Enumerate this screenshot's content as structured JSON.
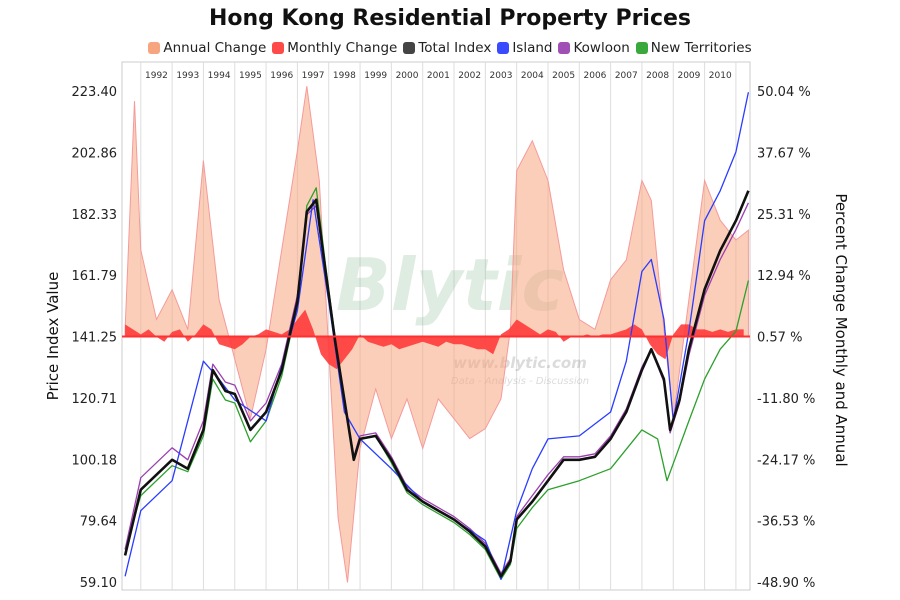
{
  "chart_data": {
    "type": "line",
    "title": "Hong Kong Residential Property Prices",
    "ylabel": "Price Index Value",
    "y2label": "Percent Change Monthly and Annual",
    "xlim": [
      1991.4,
      2011.45
    ],
    "ylim": [
      59.1,
      223.4
    ],
    "y2lim": [
      -48.9,
      50.04
    ],
    "x_tick_labels": [
      "1992",
      "1993",
      "1994",
      "1995",
      "1996",
      "1997",
      "1998",
      "1999",
      "2000",
      "2001",
      "2002",
      "2003",
      "2004",
      "2005",
      "2006",
      "2007",
      "2008",
      "2009",
      "2010"
    ],
    "y_tick_labels": [
      "223.40",
      "202.86",
      "182.33",
      "161.79",
      "141.25",
      "120.71",
      "100.18",
      "79.64",
      "59.10"
    ],
    "y2_tick_labels": [
      "50.04 %",
      "37.67 %",
      "25.31 %",
      "12.94 %",
      "0.57 %",
      "-11.80 %",
      "-24.17 %",
      "-36.53 %",
      "-48.90 %"
    ],
    "grid": "vertical year lines",
    "legend_placement": "top",
    "watermark": [
      "Blytic",
      "www.blytic.com",
      "Data - Analysis - Discussion"
    ],
    "series": [
      {
        "name": "Annual Change",
        "axis": "right",
        "kind": "area",
        "color": "#f7a57f",
        "points": [
          [
            1991.5,
            2
          ],
          [
            1991.8,
            48
          ],
          [
            1992,
            18
          ],
          [
            1992.5,
            4
          ],
          [
            1993,
            10
          ],
          [
            1993.5,
            2
          ],
          [
            1994,
            36
          ],
          [
            1994.5,
            8
          ],
          [
            1995,
            -4
          ],
          [
            1995.5,
            -16
          ],
          [
            1996,
            -2
          ],
          [
            1996.5,
            18
          ],
          [
            1997,
            38
          ],
          [
            1997.3,
            51
          ],
          [
            1997.7,
            32
          ],
          [
            1998,
            -2
          ],
          [
            1998.3,
            -36
          ],
          [
            1998.6,
            -49
          ],
          [
            1999,
            -22
          ],
          [
            1999.5,
            -10
          ],
          [
            2000,
            -20
          ],
          [
            2000.5,
            -12
          ],
          [
            2001,
            -22
          ],
          [
            2001.5,
            -12
          ],
          [
            2002,
            -16
          ],
          [
            2002.5,
            -20
          ],
          [
            2003,
            -18
          ],
          [
            2003.5,
            -12
          ],
          [
            2003.8,
            2
          ],
          [
            2004,
            34
          ],
          [
            2004.5,
            40
          ],
          [
            2005,
            32
          ],
          [
            2005.5,
            14
          ],
          [
            2006,
            4
          ],
          [
            2006.5,
            2
          ],
          [
            2007,
            12
          ],
          [
            2007.5,
            16
          ],
          [
            2008,
            32
          ],
          [
            2008.3,
            28
          ],
          [
            2008.7,
            2
          ],
          [
            2009,
            -16
          ],
          [
            2009.5,
            8
          ],
          [
            2010,
            32
          ],
          [
            2010.5,
            24
          ],
          [
            2011,
            20
          ],
          [
            2011.4,
            22
          ]
        ]
      },
      {
        "name": "Monthly Change",
        "axis": "right",
        "kind": "area",
        "color": "#ff3b3b",
        "x_start": 1991.5,
        "x_step": 0.25,
        "values": [
          3,
          2,
          1,
          2,
          0.5,
          -0.5,
          1.5,
          2,
          -0.5,
          1,
          3,
          2,
          -1,
          -1.5,
          -2,
          -1,
          0.5,
          1,
          2,
          1.5,
          1,
          2,
          4,
          6,
          2,
          -3,
          -5,
          -6,
          -4,
          -2,
          1,
          -0.5,
          -1,
          -1.5,
          -1,
          -2,
          -1.5,
          -1,
          -0.5,
          -1,
          -1.5,
          -0.5,
          -1,
          -1,
          -1.5,
          -2,
          -2,
          -3,
          1,
          2,
          4,
          3,
          2,
          1,
          2,
          1.5,
          -0.5,
          0.5,
          0.5,
          1,
          0.5,
          1,
          1,
          1.5,
          2,
          3,
          2,
          -1,
          -3,
          -4,
          1,
          3,
          3,
          2,
          2,
          1.5,
          2,
          1.5,
          2,
          2
        ]
      },
      {
        "name": "New Territories",
        "axis": "left",
        "kind": "line",
        "color": "#2ca02c",
        "points": [
          [
            1991.5,
            70
          ],
          [
            1992,
            88
          ],
          [
            1993,
            98
          ],
          [
            1993.5,
            96
          ],
          [
            1994,
            108
          ],
          [
            1994.3,
            127
          ],
          [
            1994.7,
            120
          ],
          [
            1995,
            119
          ],
          [
            1995.5,
            106
          ],
          [
            1996,
            113
          ],
          [
            1996.5,
            128
          ],
          [
            1997,
            152
          ],
          [
            1997.3,
            185
          ],
          [
            1997.6,
            191
          ],
          [
            1997.9,
            165
          ],
          [
            1998.2,
            141
          ],
          [
            1998.5,
            119
          ],
          [
            1998.8,
            100
          ],
          [
            1999,
            107
          ],
          [
            1999.5,
            108
          ],
          [
            2000,
            99
          ],
          [
            2000.5,
            89
          ],
          [
            2001,
            85
          ],
          [
            2001.5,
            82
          ],
          [
            2002,
            79
          ],
          [
            2002.5,
            75
          ],
          [
            2003,
            70
          ],
          [
            2003.5,
            60
          ],
          [
            2003.8,
            65
          ],
          [
            2004,
            77
          ],
          [
            2004.5,
            84
          ],
          [
            2005,
            90
          ],
          [
            2006,
            93
          ],
          [
            2007,
            97
          ],
          [
            2008,
            110
          ],
          [
            2008.5,
            107
          ],
          [
            2008.8,
            93
          ],
          [
            2009.5,
            113
          ],
          [
            2010,
            127
          ],
          [
            2010.5,
            137
          ],
          [
            2011,
            143
          ],
          [
            2011.4,
            160
          ]
        ]
      },
      {
        "name": "Kowloon",
        "axis": "left",
        "kind": "line",
        "color": "#9b3fb0",
        "points": [
          [
            1991.5,
            70
          ],
          [
            1992,
            94
          ],
          [
            1993,
            104
          ],
          [
            1993.5,
            100
          ],
          [
            1994,
            113
          ],
          [
            1994.3,
            132
          ],
          [
            1994.7,
            126
          ],
          [
            1995,
            125
          ],
          [
            1995.5,
            113
          ],
          [
            1996,
            119
          ],
          [
            1996.5,
            132
          ],
          [
            1997,
            155
          ],
          [
            1997.3,
            182
          ],
          [
            1997.6,
            185
          ],
          [
            1997.9,
            162
          ],
          [
            1998.2,
            140
          ],
          [
            1998.5,
            121
          ],
          [
            1998.8,
            101
          ],
          [
            1999,
            108
          ],
          [
            1999.5,
            109
          ],
          [
            2000,
            101
          ],
          [
            2000.5,
            91
          ],
          [
            2001,
            87
          ],
          [
            2001.5,
            84
          ],
          [
            2002,
            81
          ],
          [
            2002.5,
            77
          ],
          [
            2003,
            72
          ],
          [
            2003.5,
            62
          ],
          [
            2003.8,
            67
          ],
          [
            2004,
            81
          ],
          [
            2004.5,
            88
          ],
          [
            2005,
            95
          ],
          [
            2005.5,
            101
          ],
          [
            2006,
            101
          ],
          [
            2006.5,
            102
          ],
          [
            2007,
            108
          ],
          [
            2007.5,
            117
          ],
          [
            2008,
            131
          ],
          [
            2008.3,
            137
          ],
          [
            2008.7,
            126
          ],
          [
            2008.9,
            109
          ],
          [
            2009.2,
            119
          ],
          [
            2009.5,
            135
          ],
          [
            2010,
            155
          ],
          [
            2010.5,
            167
          ],
          [
            2011,
            177
          ],
          [
            2011.4,
            186
          ]
        ]
      },
      {
        "name": "Island",
        "axis": "left",
        "kind": "line",
        "color": "#2a3cff",
        "points": [
          [
            1991.5,
            61
          ],
          [
            1992,
            83
          ],
          [
            1993,
            93
          ],
          [
            1994,
            133
          ],
          [
            1994.5,
            127
          ],
          [
            1995,
            120
          ],
          [
            1996,
            113
          ],
          [
            1997,
            150
          ],
          [
            1997.5,
            187
          ],
          [
            1998,
            153
          ],
          [
            1998.5,
            116
          ],
          [
            1999,
            107
          ],
          [
            2000,
            97
          ],
          [
            2001,
            86
          ],
          [
            2002,
            80
          ],
          [
            2003,
            73
          ],
          [
            2003.5,
            60
          ],
          [
            2004,
            83
          ],
          [
            2004.5,
            97
          ],
          [
            2005,
            107
          ],
          [
            2006,
            108
          ],
          [
            2007,
            116
          ],
          [
            2007.5,
            133
          ],
          [
            2008,
            163
          ],
          [
            2008.3,
            167
          ],
          [
            2008.7,
            147
          ],
          [
            2009,
            113
          ],
          [
            2009.5,
            143
          ],
          [
            2010,
            180
          ],
          [
            2010.5,
            190
          ],
          [
            2011,
            203
          ],
          [
            2011.4,
            223
          ]
        ]
      },
      {
        "name": "Total Index",
        "axis": "left",
        "kind": "line",
        "color": "#111111",
        "points": [
          [
            1991.5,
            68
          ],
          [
            1992,
            90
          ],
          [
            1993,
            100
          ],
          [
            1993.5,
            97
          ],
          [
            1994,
            110
          ],
          [
            1994.3,
            130
          ],
          [
            1994.7,
            123
          ],
          [
            1995,
            122
          ],
          [
            1995.5,
            110
          ],
          [
            1996,
            116
          ],
          [
            1996.5,
            130
          ],
          [
            1997,
            153
          ],
          [
            1997.3,
            183
          ],
          [
            1997.6,
            187
          ],
          [
            1997.9,
            163
          ],
          [
            1998.2,
            140
          ],
          [
            1998.5,
            120
          ],
          [
            1998.8,
            100
          ],
          [
            1999,
            107
          ],
          [
            1999.5,
            108
          ],
          [
            2000,
            100
          ],
          [
            2000.5,
            90
          ],
          [
            2001,
            86
          ],
          [
            2001.5,
            83
          ],
          [
            2002,
            80
          ],
          [
            2002.5,
            76
          ],
          [
            2003,
            71
          ],
          [
            2003.5,
            61
          ],
          [
            2003.8,
            66
          ],
          [
            2004,
            80
          ],
          [
            2004.5,
            86
          ],
          [
            2005,
            93
          ],
          [
            2005.5,
            100
          ],
          [
            2006,
            100
          ],
          [
            2006.5,
            101
          ],
          [
            2007,
            107
          ],
          [
            2007.5,
            116
          ],
          [
            2008,
            130
          ],
          [
            2008.3,
            137
          ],
          [
            2008.7,
            127
          ],
          [
            2008.9,
            110
          ],
          [
            2009.2,
            120
          ],
          [
            2009.5,
            137
          ],
          [
            2010,
            157
          ],
          [
            2010.5,
            170
          ],
          [
            2011,
            180
          ],
          [
            2011.4,
            190
          ]
        ]
      }
    ],
    "legend": [
      {
        "name": "Annual Change",
        "color": "#f7a57f"
      },
      {
        "name": "Monthly Change",
        "color": "#ff4a4a"
      },
      {
        "name": "Total Index",
        "color": "#444444"
      },
      {
        "name": "Island",
        "color": "#3a4bff"
      },
      {
        "name": "Kowloon",
        "color": "#a050b5"
      },
      {
        "name": "New Territories",
        "color": "#3aa83a"
      }
    ]
  }
}
